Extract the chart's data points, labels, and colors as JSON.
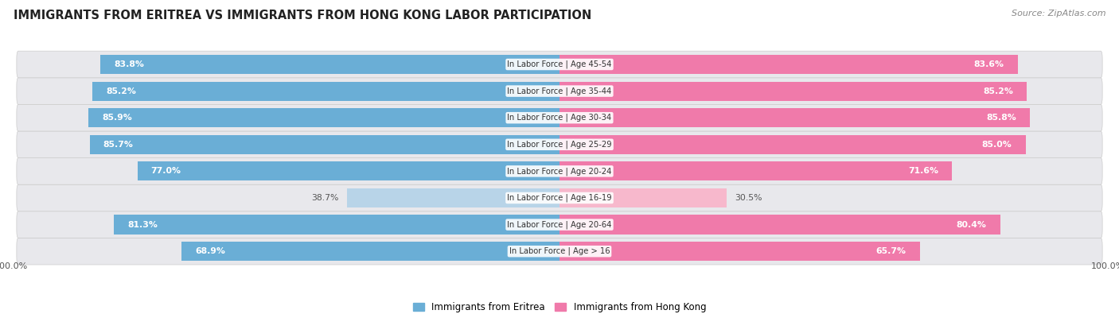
{
  "title": "IMMIGRANTS FROM ERITREA VS IMMIGRANTS FROM HONG KONG LABOR PARTICIPATION",
  "source": "Source: ZipAtlas.com",
  "categories": [
    "In Labor Force | Age > 16",
    "In Labor Force | Age 20-64",
    "In Labor Force | Age 16-19",
    "In Labor Force | Age 20-24",
    "In Labor Force | Age 25-29",
    "In Labor Force | Age 30-34",
    "In Labor Force | Age 35-44",
    "In Labor Force | Age 45-54"
  ],
  "eritrea_values": [
    68.9,
    81.3,
    38.7,
    77.0,
    85.7,
    85.9,
    85.2,
    83.8
  ],
  "hongkong_values": [
    65.7,
    80.4,
    30.5,
    71.6,
    85.0,
    85.8,
    85.2,
    83.6
  ],
  "eritrea_color": "#6aaed6",
  "eritrea_color_light": "#b8d4e8",
  "hongkong_color": "#f07aaa",
  "hongkong_color_light": "#f7b8cc",
  "row_bg_color": "#e8e8ec",
  "legend_eritrea": "Immigrants from Eritrea",
  "legend_hongkong": "Immigrants from Hong Kong",
  "max_value": 100.0,
  "threshold": 55
}
